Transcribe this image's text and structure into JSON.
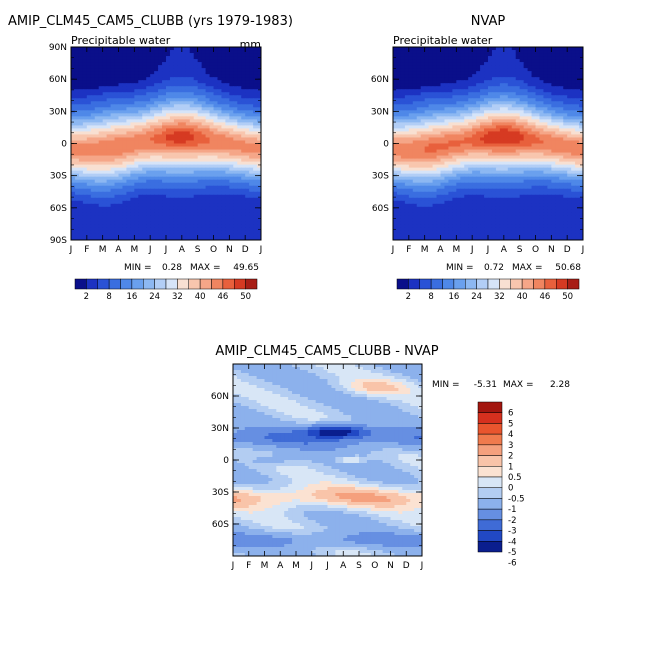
{
  "chart_data": [
    {
      "type": "heatmap",
      "title": "AMIP_CLM45_CAM5_CLUBB (yrs 1979-1983)",
      "subtitle": "Precipitable water",
      "units": "mm",
      "x_ticks": [
        "J",
        "F",
        "M",
        "A",
        "M",
        "J",
        "J",
        "A",
        "S",
        "O",
        "N",
        "D",
        "J"
      ],
      "y_ticks": [
        "90N",
        "60N",
        "30N",
        "0",
        "30S",
        "60S",
        "90S"
      ],
      "xlabel": "",
      "ylabel": "",
      "min_label": "MIN =",
      "min": "0.28",
      "max_label": "MAX =",
      "max": "49.65",
      "colorbar_labels": [
        "2",
        "8",
        "16",
        "24",
        "32",
        "40",
        "46",
        "50"
      ],
      "summary": {
        "equator_max_month": "Jul-Aug",
        "equator_peak": 49.65,
        "polar_min": 0.28
      }
    },
    {
      "type": "heatmap",
      "title": "NVAP",
      "subtitle": "Precipitable water",
      "x_ticks": [
        "J",
        "F",
        "M",
        "A",
        "M",
        "J",
        "J",
        "A",
        "S",
        "O",
        "N",
        "D",
        "J"
      ],
      "y_ticks": [
        "60N",
        "30N",
        "0",
        "30S",
        "60S"
      ],
      "min_label": "MIN =",
      "min": "0.72",
      "max_label": "MAX =",
      "max": "50.68",
      "colorbar_labels": [
        "2",
        "8",
        "16",
        "24",
        "32",
        "40",
        "46",
        "50"
      ],
      "summary": {
        "equator_max_month": "Jul-Aug",
        "equator_peak": 50.68,
        "polar_min": 0.72
      }
    },
    {
      "type": "heatmap",
      "title": "AMIP_CLM45_CAM5_CLUBB - NVAP",
      "x_ticks": [
        "J",
        "F",
        "M",
        "A",
        "M",
        "J",
        "J",
        "A",
        "S",
        "O",
        "N",
        "D",
        "J"
      ],
      "y_ticks": [
        "60N",
        "30N",
        "0",
        "30S",
        "60S"
      ],
      "min_label": "MIN =",
      "min": "-5.31",
      "max_label": "MAX =",
      "max": "2.28",
      "colorbar_labels": [
        "6",
        "5",
        "4",
        "3",
        "2",
        "1",
        "0.5",
        "0",
        "-0.5",
        "-1",
        "-2",
        "-3",
        "-4",
        "-5",
        "-6"
      ],
      "summary": {
        "min_difference": -5.31,
        "max_difference": 2.28
      }
    }
  ],
  "palettes": {
    "blue_red_16": [
      "#0a0f8a",
      "#1c32c2",
      "#2a52d6",
      "#3a6ee0",
      "#4f88e8",
      "#6aa0ee",
      "#8db8f2",
      "#b2cef6",
      "#d6e4f8",
      "#f8e0d2",
      "#f8c6ae",
      "#f5a688",
      "#f08560",
      "#e8603c",
      "#d63a22",
      "#a81e16"
    ],
    "diff_14": [
      "#a3160f",
      "#d6301e",
      "#e9552e",
      "#f07a4d",
      "#f5a07d",
      "#f9c4a9",
      "#fbe2d2",
      "#d8e6f6",
      "#b3cdf2",
      "#8cb1ec",
      "#668fe2",
      "#3f6bd6",
      "#2148c4",
      "#0a1e8e"
    ]
  }
}
